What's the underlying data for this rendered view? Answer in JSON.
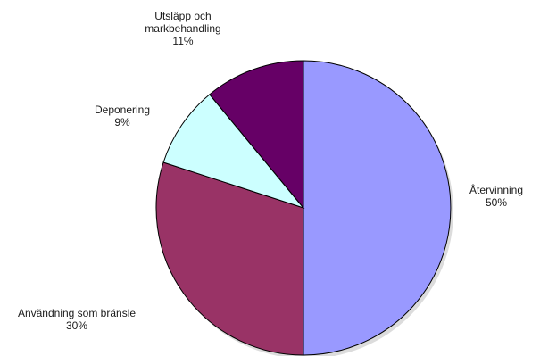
{
  "chart_data": {
    "type": "pie",
    "slices": [
      {
        "label": "Återvinning",
        "percent_label": "50%",
        "value": 50,
        "color": "#9999ff"
      },
      {
        "label": "Användning som bränsle",
        "percent_label": "30%",
        "value": 30,
        "color": "#993366"
      },
      {
        "label": "Deponering",
        "percent_label": "9%",
        "value": 9,
        "color": "#ccffff"
      },
      {
        "label": "Utsläpp och\nmarkbehandling",
        "percent_label": "11%",
        "value": 11,
        "color": "#660066"
      }
    ],
    "start": "top, clockwise",
    "legend": "none"
  }
}
